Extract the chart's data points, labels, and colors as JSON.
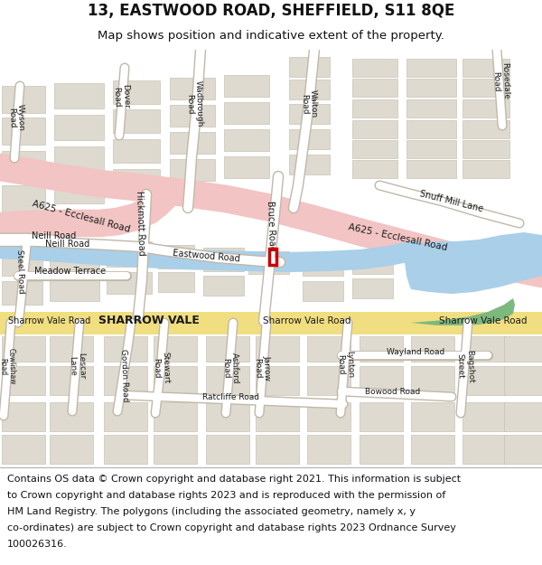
{
  "title": "13, EASTWOOD ROAD, SHEFFIELD, S11 8QE",
  "subtitle": "Map shows position and indicative extent of the property.",
  "footer_lines": [
    "Contains OS data © Crown copyright and database right 2021. This information is subject",
    "to Crown copyright and database rights 2023 and is reproduced with the permission of",
    "HM Land Registry. The polygons (including the associated geometry, namely x, y",
    "co-ordinates) are subject to Crown copyright and database rights 2023 Ordnance Survey",
    "100026316."
  ],
  "bg_color": "#f0ede6",
  "road_color": "#ffffff",
  "major_road_color": "#f2c4c4",
  "water_color": "#aacfe8",
  "green_color": "#7db87d",
  "building_color": "#dedad0",
  "road_line_color": "#c0b8a8",
  "highlight_color": "#cc0000",
  "yellow_road_color": "#f0de80",
  "title_fontsize": 12,
  "subtitle_fontsize": 9.5,
  "footer_fontsize": 8.0
}
